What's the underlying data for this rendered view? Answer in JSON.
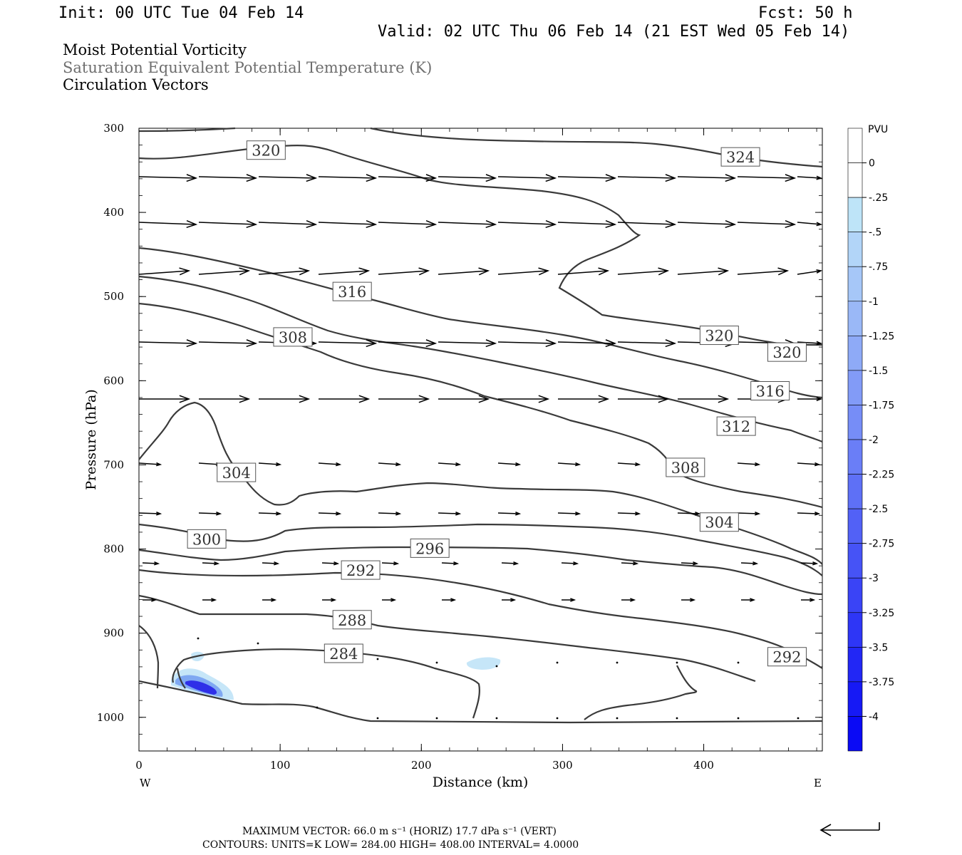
{
  "header": {
    "init": "Init: 00 UTC Tue 04 Feb 14",
    "fcst": "Fcst:   50 h",
    "valid": "Valid: 02 UTC Thu 06 Feb 14 (21 EST Wed 05 Feb 14)",
    "title_line1": "Moist Potential Vorticity",
    "title_line2": "Saturation Equivalent Potential Temperature (K)",
    "title_line3": "Circulation Vectors"
  },
  "footer": {
    "max_vector": "MAXIMUM VECTOR:  66.0 m s⁻¹ (HORIZ)        17.7 dPa s⁻¹ (VERT)",
    "contours": "CONTOURS:  UNITS=K  LOW=  284.00       HIGH=  408.00       INTERVAL=    4.0000"
  },
  "colors": {
    "contour": "#3a3a3a",
    "mpv_light": "#bfe4f8",
    "mpv_dark": "#1f1ff0"
  },
  "chart_data": {
    "type": "contour",
    "xlabel": "Distance (km)",
    "ylabel": "Pressure (hPa)",
    "x_ticks": [
      0,
      100,
      200,
      300,
      400
    ],
    "y_ticks": [
      300,
      400,
      500,
      600,
      700,
      800,
      900,
      1000
    ],
    "xlim": [
      0,
      484
    ],
    "ylim": [
      300,
      1040
    ],
    "y_scale": "linear, inverted",
    "x_end_labels": {
      "left": "W",
      "right": "E"
    },
    "contour_labels": [
      {
        "text": "320",
        "x": 90,
        "p": 326
      },
      {
        "text": "324",
        "x": 426,
        "p": 334
      },
      {
        "text": "316",
        "x": 151,
        "p": 494
      },
      {
        "text": "308",
        "x": 109,
        "p": 548
      },
      {
        "text": "320",
        "x": 411,
        "p": 546
      },
      {
        "text": "320",
        "x": 459,
        "p": 566
      },
      {
        "text": "316",
        "x": 447,
        "p": 612
      },
      {
        "text": "312",
        "x": 423,
        "p": 654
      },
      {
        "text": "304",
        "x": 69,
        "p": 709
      },
      {
        "text": "308",
        "x": 387,
        "p": 703
      },
      {
        "text": "300",
        "x": 48,
        "p": 788
      },
      {
        "text": "304",
        "x": 411,
        "p": 768
      },
      {
        "text": "296",
        "x": 206,
        "p": 799
      },
      {
        "text": "292",
        "x": 157,
        "p": 825
      },
      {
        "text": "288",
        "x": 151,
        "p": 884
      },
      {
        "text": "284",
        "x": 145,
        "p": 924
      },
      {
        "text": "292",
        "x": 459,
        "p": 928
      }
    ],
    "colorbar": {
      "unit": "PVU",
      "levels": [
        "0",
        "-.25",
        "-.5",
        "-.75",
        "-1",
        "-1.25",
        "-1.5",
        "-1.75",
        "-2",
        "-2.25",
        "-2.5",
        "-2.75",
        "-3",
        "-3.25",
        "-3.5",
        "-3.75",
        "-4"
      ]
    }
  }
}
